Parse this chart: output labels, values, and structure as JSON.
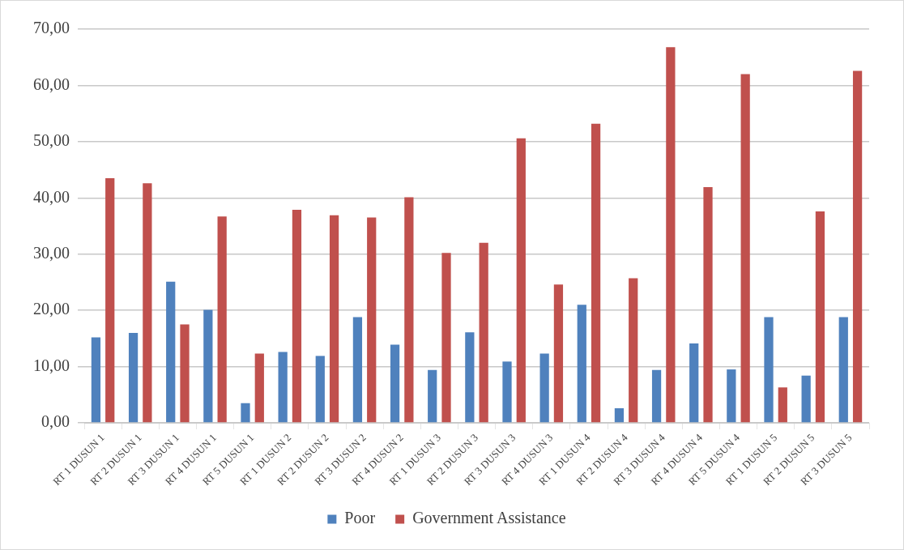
{
  "chart_data": {
    "type": "bar",
    "categories": [
      "RT 1 DUSUN 1",
      "RT 2 DUSUN 1",
      "RT 3 DUSUN 1",
      "RT 4 DUSUN 1",
      "RT 5 DUSUN 1",
      "RT 1 DUSUN 2",
      "RT 2 DUSUN 2",
      "RT 3 DUSUN 2",
      "RT 4 DUSUN 2",
      "RT 1 DUSUN 3",
      "RT 2 DUSUN 3",
      "RT 3 DUSUN 3",
      "RT 4 DUSUN 3",
      "RT 1 DUSUN 4",
      "RT 2 DUSUN 4",
      "RT 3 DUSUN 4",
      "RT 4 DUSUN 4",
      "RT 5 DUSUN 4",
      "RT 1 DUSUN 5",
      "RT 2 DUSUN 5",
      "RT 3 DUSUN 5"
    ],
    "series": [
      {
        "name": "Poor",
        "color": "#4f81bd",
        "values": [
          15.2,
          16,
          25.1,
          20.1,
          3.5,
          12.6,
          11.9,
          18.8,
          13.9,
          9.4,
          16.1,
          10.9,
          12.3,
          21,
          2.6,
          9.4,
          14.1,
          9.5,
          18.8,
          8.4,
          18.8
        ]
      },
      {
        "name": "Government Assistance",
        "color": "#c0504d",
        "values": [
          43.5,
          42.6,
          17.5,
          36.7,
          12.3,
          37.9,
          36.9,
          36.5,
          40.1,
          30.2,
          32,
          50.6,
          24.6,
          53.2,
          25.7,
          66.8,
          41.9,
          62,
          6.3,
          37.6,
          62.6
        ]
      }
    ],
    "ylim": [
      0,
      70
    ],
    "yticks": [
      {
        "value": 0,
        "label": "0,00"
      },
      {
        "value": 10,
        "label": "10,00"
      },
      {
        "value": 20,
        "label": "20,00"
      },
      {
        "value": 30,
        "label": "30,00"
      },
      {
        "value": 40,
        "label": "40,00"
      },
      {
        "value": 50,
        "label": "50,00"
      },
      {
        "value": 60,
        "label": "60,00"
      },
      {
        "value": 70,
        "label": "70,00"
      }
    ],
    "grid": true,
    "legend": "bottom"
  }
}
